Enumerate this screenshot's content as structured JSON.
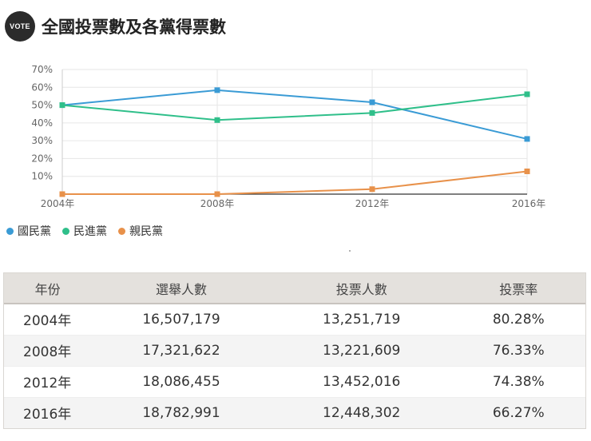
{
  "header": {
    "badge": "VOTE",
    "title": "全國投票數及各黨得票數"
  },
  "chart_data": {
    "type": "line",
    "x": [
      "2004年",
      "2008年",
      "2012年",
      "2016年"
    ],
    "ylim": [
      0,
      70
    ],
    "yticks": [
      "10%",
      "20%",
      "30%",
      "40%",
      "50%",
      "60%",
      "70%"
    ],
    "grid": true,
    "legend_position": "bottom-left",
    "series": [
      {
        "name": "國民黨",
        "color": "#3a9bd5",
        "values": [
          50,
          58.4,
          51.6,
          31.0
        ]
      },
      {
        "name": "民進黨",
        "color": "#2fbf8a",
        "values": [
          50,
          41.6,
          45.6,
          56.1
        ]
      },
      {
        "name": "親民黨",
        "color": "#e8914a",
        "values": [
          0,
          0,
          2.8,
          12.8
        ]
      }
    ]
  },
  "table": {
    "headers": [
      "年份",
      "選舉人數",
      "投票人數",
      "投票率"
    ],
    "rows": [
      [
        "2004年",
        "16,507,179",
        "13,251,719",
        "80.28%"
      ],
      [
        "2008年",
        "17,321,622",
        "13,221,609",
        "76.33%"
      ],
      [
        "2012年",
        "18,086,455",
        "13,452,016",
        "74.38%"
      ],
      [
        "2016年",
        "18,782,991",
        "12,448,302",
        "66.27%"
      ]
    ]
  }
}
